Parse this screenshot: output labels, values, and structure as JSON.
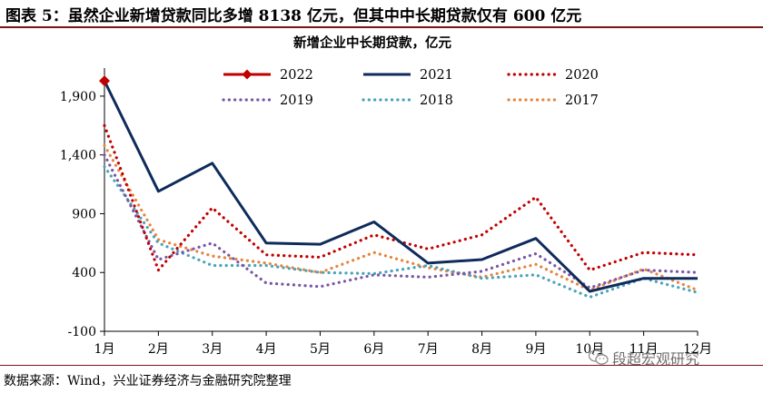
{
  "figure": {
    "title": "图表 5：虽然企业新增贷款同比多增 8138 亿元，但其中中长期贷款仅有 600 亿元",
    "source": "数据来源：Wind，兴业证券经济与金融研究院整理",
    "watermark": "段超宏观研究",
    "watermark_icon": "wechat-icon"
  },
  "chart_data": {
    "type": "line",
    "title": "新增企业中长期贷款，亿元",
    "xlabel": "",
    "ylabel": "",
    "categories": [
      "1月",
      "2月",
      "3月",
      "4月",
      "5月",
      "6月",
      "7月",
      "8月",
      "9月",
      "10月",
      "11月",
      "12月"
    ],
    "ylim": [
      -100,
      2100
    ],
    "yticks": [
      -100,
      400,
      900,
      1400,
      1900
    ],
    "ytick_labels": [
      "-100",
      "400",
      "900",
      "1,400",
      "1,900"
    ],
    "grid": false,
    "legend_position": "top",
    "series": [
      {
        "name": "2022",
        "color": "#c00000",
        "style": "solid-diamond",
        "values": [
          2030,
          null,
          null,
          null,
          null,
          null,
          null,
          null,
          null,
          null,
          null,
          null
        ]
      },
      {
        "name": "2021",
        "color": "#0f2b5b",
        "style": "solid",
        "values": [
          2030,
          1090,
          1330,
          650,
          640,
          830,
          480,
          510,
          690,
          240,
          350,
          350
        ]
      },
      {
        "name": "2020",
        "color": "#c00000",
        "style": "dotted",
        "values": [
          1650,
          420,
          950,
          550,
          530,
          720,
          600,
          720,
          1040,
          420,
          570,
          550
        ]
      },
      {
        "name": "2019",
        "color": "#7a56a6",
        "style": "dotted",
        "values": [
          1400,
          510,
          650,
          310,
          280,
          380,
          360,
          410,
          560,
          270,
          420,
          400
        ]
      },
      {
        "name": "2018",
        "color": "#4aa3b8",
        "style": "dotted",
        "values": [
          1300,
          650,
          460,
          460,
          400,
          390,
          460,
          350,
          380,
          190,
          350,
          230
        ]
      },
      {
        "name": "2017",
        "color": "#e6843e",
        "style": "dotted",
        "values": [
          1480,
          680,
          540,
          480,
          400,
          570,
          440,
          360,
          470,
          250,
          430,
          250
        ]
      }
    ]
  }
}
